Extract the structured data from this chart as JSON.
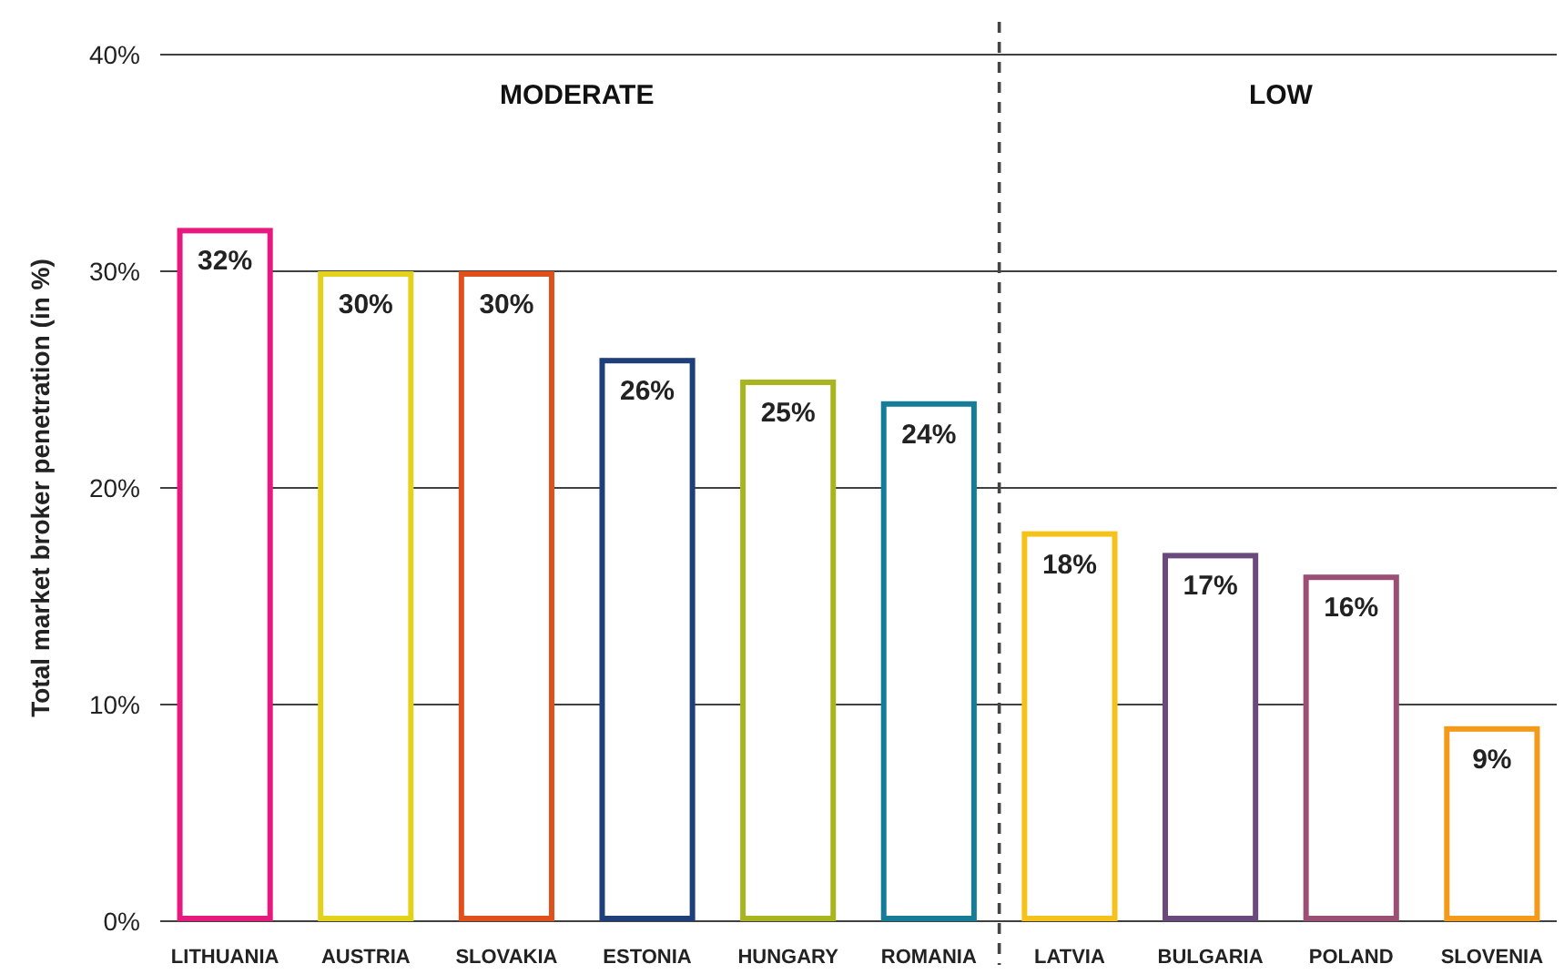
{
  "chart_data": {
    "type": "bar",
    "ylabel": "Total market broker penetration (in %)",
    "categories": [
      "LITHUANIA",
      "AUSTRIA",
      "SLOVAKIA",
      "ESTONIA",
      "HUNGARY",
      "ROMANIA",
      "LATVIA",
      "BULGARIA",
      "POLAND",
      "SLOVENIA"
    ],
    "values": [
      32,
      30,
      30,
      26,
      25,
      24,
      18,
      17,
      16,
      9
    ],
    "colors": [
      "#e5197e",
      "#e3d21c",
      "#e0501c",
      "#1f3f7a",
      "#a9b51e",
      "#167d98",
      "#f5c21b",
      "#6a4a7d",
      "#9b4f74",
      "#f39a1a"
    ],
    "value_labels": [
      "32%",
      "30%",
      "30%",
      "26%",
      "25%",
      "24%",
      "18%",
      "17%",
      "16%",
      "9%"
    ],
    "ylim": [
      0,
      40
    ],
    "yticks": [
      {
        "value": 0,
        "label": "0%"
      },
      {
        "value": 10,
        "label": "10%"
      },
      {
        "value": 20,
        "label": "20%"
      },
      {
        "value": 30,
        "label": "30%"
      },
      {
        "value": 40,
        "label": "40%"
      }
    ],
    "grid": "y",
    "annotations": [
      "MODERATE",
      "LOW"
    ]
  }
}
